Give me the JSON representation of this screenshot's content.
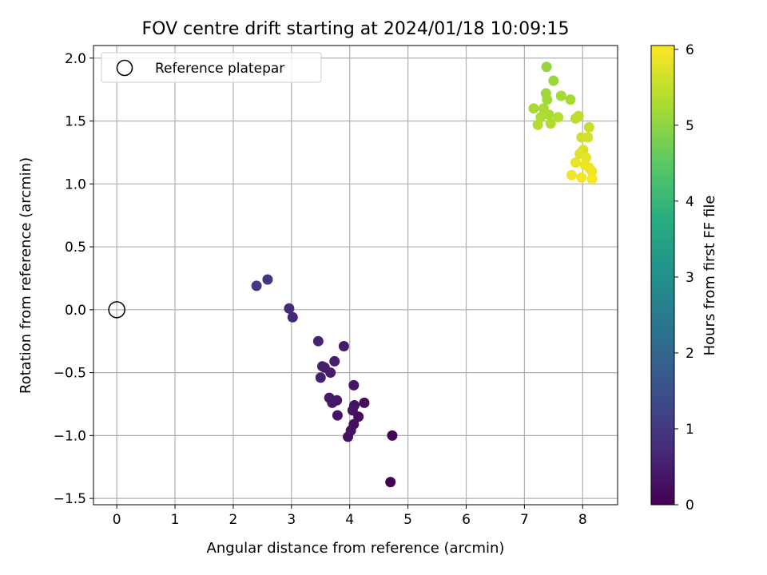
{
  "chart_data": {
    "type": "scatter",
    "title": "FOV centre drift starting at 2024/01/18 10:09:15",
    "xlabel": "Angular distance from reference (arcmin)",
    "ylabel": "Rotation from reference (arcmin)",
    "xlim": [
      -0.4,
      8.6
    ],
    "ylim": [
      -1.55,
      2.1
    ],
    "xticks": [
      0,
      1,
      2,
      3,
      4,
      5,
      6,
      7,
      8
    ],
    "yticks": [
      -1.5,
      -1.0,
      -0.5,
      0.0,
      0.5,
      1.0,
      1.5,
      2.0
    ],
    "xtick_labels": [
      "0",
      "1",
      "2",
      "3",
      "4",
      "5",
      "6",
      "7",
      "8"
    ],
    "ytick_labels": [
      "−1.5",
      "−1.0",
      "−0.5",
      "0.0",
      "0.5",
      "1.0",
      "1.5",
      "2.0"
    ],
    "grid": true,
    "legend": {
      "placement": "upper-left",
      "label": "Reference platepar"
    },
    "reference_point": {
      "x": 0,
      "y": 0
    },
    "colorbar": {
      "label": "Hours from first FF file",
      "range": [
        0,
        6.05
      ],
      "ticks": [
        0,
        1,
        2,
        3,
        4,
        5,
        6
      ],
      "tick_labels": [
        "0",
        "1",
        "2",
        "3",
        "4",
        "5",
        "6"
      ],
      "colormap": "viridis"
    },
    "points": [
      {
        "x": 4.7,
        "y": -1.37,
        "c": 0.0
      },
      {
        "x": 4.73,
        "y": -1.0,
        "c": 0.05
      },
      {
        "x": 4.25,
        "y": -0.74,
        "c": 0.15
      },
      {
        "x": 4.15,
        "y": -0.85,
        "c": 0.2
      },
      {
        "x": 4.07,
        "y": -0.91,
        "c": 0.22
      },
      {
        "x": 3.97,
        "y": -1.01,
        "c": 0.25
      },
      {
        "x": 4.02,
        "y": -0.96,
        "c": 0.28
      },
      {
        "x": 4.08,
        "y": -0.76,
        "c": 0.3
      },
      {
        "x": 4.07,
        "y": -0.6,
        "c": 0.32
      },
      {
        "x": 4.05,
        "y": -0.8,
        "c": 0.34
      },
      {
        "x": 3.79,
        "y": -0.84,
        "c": 0.36
      },
      {
        "x": 3.78,
        "y": -0.72,
        "c": 0.38
      },
      {
        "x": 3.7,
        "y": -0.74,
        "c": 0.4
      },
      {
        "x": 3.65,
        "y": -0.7,
        "c": 0.42
      },
      {
        "x": 3.9,
        "y": -0.29,
        "c": 0.44
      },
      {
        "x": 3.74,
        "y": -0.41,
        "c": 0.46
      },
      {
        "x": 3.67,
        "y": -0.5,
        "c": 0.48
      },
      {
        "x": 3.57,
        "y": -0.46,
        "c": 0.5
      },
      {
        "x": 3.53,
        "y": -0.45,
        "c": 0.52
      },
      {
        "x": 3.5,
        "y": -0.54,
        "c": 0.54
      },
      {
        "x": 3.46,
        "y": -0.25,
        "c": 0.58
      },
      {
        "x": 3.02,
        "y": -0.06,
        "c": 0.65
      },
      {
        "x": 2.96,
        "y": 0.01,
        "c": 0.7
      },
      {
        "x": 2.59,
        "y": 0.24,
        "c": 0.85
      },
      {
        "x": 2.4,
        "y": 0.19,
        "c": 1.05
      },
      {
        "x": 7.38,
        "y": 1.93,
        "c": 5.05
      },
      {
        "x": 7.5,
        "y": 1.82,
        "c": 5.1
      },
      {
        "x": 7.37,
        "y": 1.72,
        "c": 5.15
      },
      {
        "x": 7.39,
        "y": 1.67,
        "c": 5.18
      },
      {
        "x": 7.63,
        "y": 1.7,
        "c": 5.2
      },
      {
        "x": 7.79,
        "y": 1.67,
        "c": 5.22
      },
      {
        "x": 7.16,
        "y": 1.6,
        "c": 5.24
      },
      {
        "x": 7.33,
        "y": 1.6,
        "c": 5.26
      },
      {
        "x": 7.42,
        "y": 1.55,
        "c": 5.28
      },
      {
        "x": 7.28,
        "y": 1.53,
        "c": 5.3
      },
      {
        "x": 7.45,
        "y": 1.48,
        "c": 5.32
      },
      {
        "x": 7.23,
        "y": 1.47,
        "c": 5.34
      },
      {
        "x": 7.58,
        "y": 1.53,
        "c": 5.36
      },
      {
        "x": 7.88,
        "y": 1.52,
        "c": 5.4
      },
      {
        "x": 7.93,
        "y": 1.54,
        "c": 5.45
      },
      {
        "x": 8.11,
        "y": 1.45,
        "c": 5.55
      },
      {
        "x": 7.98,
        "y": 1.37,
        "c": 5.6
      },
      {
        "x": 8.09,
        "y": 1.37,
        "c": 5.65
      },
      {
        "x": 8.01,
        "y": 1.27,
        "c": 5.7
      },
      {
        "x": 7.95,
        "y": 1.24,
        "c": 5.75
      },
      {
        "x": 8.06,
        "y": 1.21,
        "c": 5.8
      },
      {
        "x": 7.88,
        "y": 1.17,
        "c": 5.85
      },
      {
        "x": 8.04,
        "y": 1.15,
        "c": 5.88
      },
      {
        "x": 8.11,
        "y": 1.13,
        "c": 5.9
      },
      {
        "x": 8.16,
        "y": 1.1,
        "c": 5.92
      },
      {
        "x": 7.81,
        "y": 1.07,
        "c": 5.94
      },
      {
        "x": 7.98,
        "y": 1.05,
        "c": 5.96
      },
      {
        "x": 8.16,
        "y": 1.04,
        "c": 6.0
      }
    ]
  }
}
